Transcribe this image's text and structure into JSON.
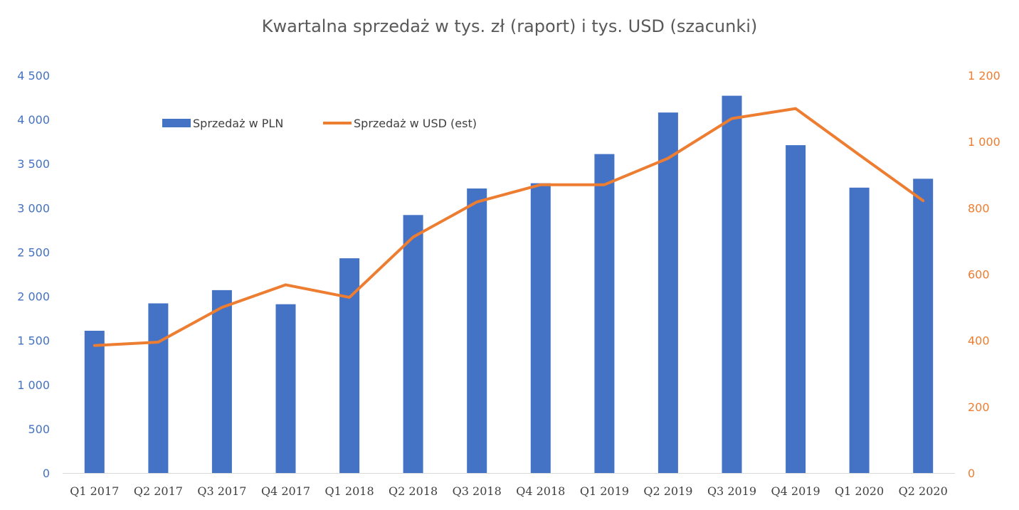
{
  "chart_data": {
    "type": "bar",
    "title": "Kwartalna sprzedaż w tys. zł (raport) i tys. USD (szacunki)",
    "categories": [
      "Q1 2017",
      "Q2 2017",
      "Q3 2017",
      "Q4 2017",
      "Q1 2018",
      "Q2 2018",
      "Q3 2018",
      "Q4 2018",
      "Q1 2019",
      "Q2 2019",
      "Q3 2019",
      "Q4 2019",
      "Q1 2020",
      "Q2 2020"
    ],
    "series": [
      {
        "name": "Sprzedaż w PLN",
        "type": "bar",
        "axis": "left",
        "color": "#4472c4",
        "values": [
          1610,
          1920,
          2070,
          1910,
          2430,
          2920,
          3220,
          3280,
          3610,
          4080,
          4270,
          3710,
          3230,
          3330
        ]
      },
      {
        "name": "Sprzedaż w USD (est)",
        "type": "line",
        "axis": "right",
        "color": "#ed7d31",
        "values": [
          385,
          395,
          500,
          568,
          530,
          712,
          818,
          870,
          870,
          950,
          1070,
          1100,
          960,
          822
        ]
      }
    ],
    "y_left": {
      "min": 0,
      "max": 4500,
      "step": 500,
      "tick_labels": [
        "0",
        "500",
        "1 000",
        "1 500",
        "2 000",
        "2 500",
        "3 000",
        "3 500",
        "4 000",
        "4 500"
      ]
    },
    "y_right": {
      "min": 0,
      "max": 1200,
      "step": 200,
      "tick_labels": [
        "0",
        "200",
        "400",
        "600",
        "800",
        "1 000",
        "1 200"
      ]
    },
    "grid": false,
    "legend_position": "top-left"
  }
}
